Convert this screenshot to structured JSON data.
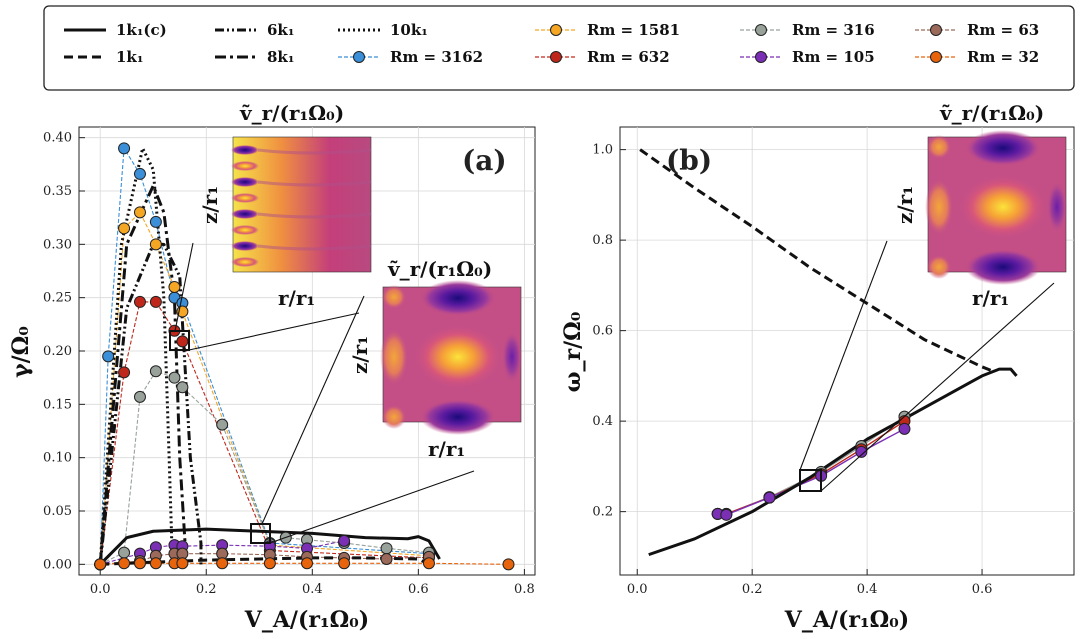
{
  "chart_data": {
    "type": "line",
    "legend": {
      "placement": "top",
      "entries": [
        {
          "label": "1k₁(c)",
          "style": "solid-black"
        },
        {
          "label": "1k₁",
          "style": "dashed-black"
        },
        {
          "label": "6k₁",
          "style": "dashdotdot-black"
        },
        {
          "label": "8k₁",
          "style": "dashdot-black"
        },
        {
          "label": "10k₁",
          "style": "dotted-black"
        },
        {
          "label": "Rm = 3162",
          "color": "#3a8fd8"
        },
        {
          "label": "Rm = 1581",
          "color": "#f5a623"
        },
        {
          "label": "Rm = 632",
          "color": "#c0271b"
        },
        {
          "label": "Rm = 316",
          "color": "#98a29b"
        },
        {
          "label": "Rm = 105",
          "color": "#7a2fb5"
        },
        {
          "label": "Rm = 63",
          "color": "#9b6a5a"
        },
        {
          "label": "Rm = 32",
          "color": "#e8640c"
        }
      ]
    },
    "panels": [
      {
        "id": "a",
        "panel_label": "(a)",
        "xlabel": "V_A/(r₁Ω₀)",
        "ylabel": "γ/Ω₀",
        "xlim": [
          -0.04,
          0.82
        ],
        "ylim": [
          -0.01,
          0.41
        ],
        "xticks": [
          "0.0",
          "0.2",
          "0.4",
          "0.6",
          "0.8"
        ],
        "yticks": [
          "0.00",
          "0.05",
          "0.10",
          "0.15",
          "0.20",
          "0.25",
          "0.30",
          "0.35",
          "0.40"
        ],
        "series": [
          {
            "name": "1k₁(c)",
            "x": [
              0.0,
              0.05,
              0.1,
              0.2,
              0.3,
              0.4,
              0.5,
              0.58,
              0.6,
              0.62,
              0.64
            ],
            "y": [
              0.0,
              0.025,
              0.031,
              0.033,
              0.031,
              0.029,
              0.025,
              0.024,
              0.026,
              0.022,
              0.005
            ]
          },
          {
            "name": "1k₁",
            "x": [
              0.0,
              0.1,
              0.2,
              0.3,
              0.4,
              0.5,
              0.6,
              0.62
            ],
            "y": [
              0.0,
              0.002,
              0.004,
              0.005,
              0.006,
              0.006,
              0.005,
              0.0
            ]
          },
          {
            "name": "6k₁",
            "x": [
              0.0,
              0.05,
              0.1,
              0.12,
              0.15,
              0.17,
              0.19,
              0.19
            ],
            "y": [
              0.0,
              0.24,
              0.3,
              0.3,
              0.27,
              0.1,
              0.02,
              0.0
            ]
          },
          {
            "name": "8k₁",
            "x": [
              0.0,
              0.05,
              0.1,
              0.12,
              0.14,
              0.15,
              0.16,
              0.16
            ],
            "y": [
              0.0,
              0.3,
              0.355,
              0.33,
              0.25,
              0.1,
              0.02,
              0.0
            ]
          },
          {
            "name": "10k₁",
            "x": [
              0.0,
              0.04,
              0.08,
              0.1,
              0.12,
              0.13,
              0.135,
              0.135
            ],
            "y": [
              0.0,
              0.3,
              0.39,
              0.37,
              0.25,
              0.1,
              0.02,
              0.0
            ]
          },
          {
            "name": "Rm = 3162",
            "x": [
              0.0,
              0.015,
              0.045,
              0.075,
              0.105,
              0.14,
              0.155,
              0.32,
              0.62
            ],
            "y": [
              0.0,
              0.195,
              0.39,
              0.366,
              0.321,
              0.25,
              0.245,
              0.02,
              0.01
            ]
          },
          {
            "name": "Rm = 1581",
            "x": [
              0.0,
              0.045,
              0.075,
              0.105,
              0.14,
              0.155,
              0.32,
              0.62
            ],
            "y": [
              0.0,
              0.315,
              0.33,
              0.3,
              0.26,
              0.237,
              0.018,
              0.008
            ]
          },
          {
            "name": "Rm = 632",
            "x": [
              0.0,
              0.045,
              0.075,
              0.105,
              0.14,
              0.155,
              0.32,
              0.62
            ],
            "y": [
              0.0,
              0.18,
              0.246,
              0.246,
              0.219,
              0.209,
              0.013,
              0.006
            ]
          },
          {
            "name": "Rm = 316",
            "x": [
              0.0,
              0.045,
              0.075,
              0.105,
              0.14,
              0.155,
              0.23,
              0.32,
              0.35,
              0.39,
              0.46,
              0.54,
              0.62
            ],
            "y": [
              0.0,
              0.011,
              0.157,
              0.181,
              0.175,
              0.166,
              0.131,
              0.019,
              0.025,
              0.023,
              0.02,
              0.015,
              0.011
            ]
          },
          {
            "name": "Rm = 105",
            "x": [
              0.0,
              0.075,
              0.105,
              0.14,
              0.155,
              0.23,
              0.32,
              0.39,
              0.46
            ],
            "y": [
              0.0,
              0.01,
              0.016,
              0.018,
              0.017,
              0.018,
              0.017,
              0.015,
              0.022
            ]
          },
          {
            "name": "Rm = 63",
            "x": [
              0.0,
              0.075,
              0.105,
              0.14,
              0.155,
              0.23,
              0.32,
              0.39,
              0.46,
              0.54,
              0.62
            ],
            "y": [
              0.0,
              0.003,
              0.008,
              0.01,
              0.01,
              0.01,
              0.009,
              0.007,
              0.006,
              0.005,
              0.007
            ]
          },
          {
            "name": "Rm = 32",
            "x": [
              0.0,
              0.045,
              0.075,
              0.105,
              0.14,
              0.155,
              0.23,
              0.32,
              0.39,
              0.46,
              0.62,
              0.77
            ],
            "y": [
              0.0,
              0.001,
              0.001,
              0.001,
              0.001,
              0.001,
              0.001,
              0.001,
              0.001,
              0.001,
              0.001,
              0.0
            ]
          }
        ],
        "insets": [
          {
            "title": "ṽ_r/(r₁Ω₀)",
            "ylabel": "z/r₁",
            "xlabel": "r/r₁"
          },
          {
            "title": "ṽ_r/(r₁Ω₀)",
            "ylabel": "z/r₁",
            "xlabel": "r/r₁"
          }
        ]
      },
      {
        "id": "b",
        "panel_label": "(b)",
        "xlabel": "V_A/(r₁Ω₀)",
        "ylabel": "ω_r/Ω₀",
        "xlim": [
          -0.03,
          0.76
        ],
        "ylim": [
          0.06,
          1.05
        ],
        "xticks": [
          "0.0",
          "0.2",
          "0.4",
          "0.6"
        ],
        "yticks": [
          "0.2",
          "0.4",
          "0.6",
          "0.8",
          "1.0"
        ],
        "series": [
          {
            "name": "1k₁(c)",
            "x": [
              0.02,
              0.1,
              0.2,
              0.3,
              0.4,
              0.5,
              0.6,
              0.63,
              0.65,
              0.66
            ],
            "y": [
              0.105,
              0.14,
              0.2,
              0.275,
              0.36,
              0.43,
              0.5,
              0.515,
              0.515,
              0.5
            ]
          },
          {
            "name": "1k₁",
            "x": [
              0.005,
              0.1,
              0.2,
              0.3,
              0.4,
              0.5,
              0.6,
              0.62
            ],
            "y": [
              1.0,
              0.915,
              0.83,
              0.74,
              0.66,
              0.58,
              0.52,
              0.51
            ]
          },
          {
            "name": "Rm = 316",
            "x": [
              0.14,
              0.155,
              0.23,
              0.32,
              0.39,
              0.465
            ],
            "y": [
              0.195,
              0.195,
              0.232,
              0.288,
              0.345,
              0.41
            ]
          },
          {
            "name": "Rm = 632",
            "x": [
              0.14,
              0.155,
              0.23,
              0.32,
              0.39,
              0.465
            ],
            "y": [
              0.195,
              0.195,
              0.231,
              0.283,
              0.338,
              0.4
            ]
          },
          {
            "name": "Rm = 105",
            "x": [
              0.14,
              0.155,
              0.23,
              0.32,
              0.39,
              0.465
            ],
            "y": [
              0.195,
              0.193,
              0.231,
              0.279,
              0.332,
              0.383
            ]
          }
        ],
        "insets": [
          {
            "title": "ṽ_r/(r₁Ω₀)",
            "ylabel": "z/r₁",
            "xlabel": "r/r₁"
          }
        ]
      }
    ]
  }
}
